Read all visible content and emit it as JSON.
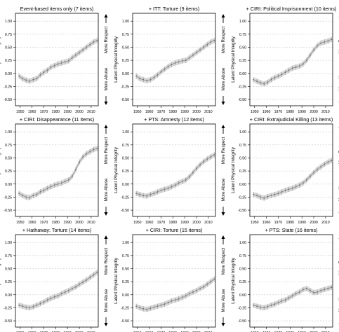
{
  "figure": {
    "ylabel": "Latent Physical Integrity",
    "side_top": "More Respect",
    "side_bottom": "More Abuse",
    "yticks": [
      "-0.50",
      "-0.25",
      "0.00",
      "0.25",
      "0.50",
      "0.75",
      "1.00"
    ],
    "xticks": [
      "1950",
      "1960",
      "1970",
      "1980",
      "1990",
      "2000",
      "2010"
    ]
  },
  "chart_data": [
    {
      "type": "line",
      "title": "Event-based items only (7 items)",
      "ylabel": "Latent Physical Integrity",
      "xlim": [
        1946,
        2016
      ],
      "ylim": [
        -0.62,
        1.15
      ],
      "grid": true,
      "band_halfwidth": 0.05,
      "x": [
        1949,
        1952,
        1955,
        1958,
        1961,
        1964,
        1967,
        1970,
        1973,
        1976,
        1979,
        1982,
        1985,
        1988,
        1991,
        1994,
        1997,
        2000,
        2003,
        2006,
        2009,
        2012,
        2015
      ],
      "y": [
        -0.05,
        -0.1,
        -0.13,
        -0.15,
        -0.12,
        -0.1,
        -0.03,
        0.02,
        0.06,
        0.12,
        0.15,
        0.18,
        0.2,
        0.22,
        0.24,
        0.3,
        0.35,
        0.4,
        0.45,
        0.5,
        0.55,
        0.6,
        0.63
      ]
    },
    {
      "type": "line",
      "title": "+ ITT: Torture (9 items)",
      "ylabel": "Latent Physical Integrity",
      "xlim": [
        1946,
        2016
      ],
      "ylim": [
        -0.62,
        1.15
      ],
      "grid": true,
      "band_halfwidth": 0.05,
      "x": [
        1949,
        1952,
        1955,
        1958,
        1961,
        1964,
        1967,
        1970,
        1973,
        1976,
        1979,
        1982,
        1985,
        1988,
        1991,
        1994,
        1997,
        2000,
        2003,
        2006,
        2009,
        2012,
        2015
      ],
      "y": [
        -0.05,
        -0.1,
        -0.12,
        -0.14,
        -0.12,
        -0.08,
        -0.03,
        0.03,
        0.08,
        0.13,
        0.17,
        0.2,
        0.22,
        0.24,
        0.25,
        0.3,
        0.35,
        0.4,
        0.45,
        0.5,
        0.55,
        0.6,
        0.63
      ]
    },
    {
      "type": "line",
      "title": "+ CIRI: Political Imprisonment (10 items)",
      "ylabel": "Latent Physical Integrity",
      "xlim": [
        1946,
        2016
      ],
      "ylim": [
        -0.62,
        1.15
      ],
      "grid": true,
      "band_halfwidth": 0.05,
      "x": [
        1949,
        1952,
        1955,
        1958,
        1961,
        1964,
        1967,
        1970,
        1973,
        1976,
        1979,
        1982,
        1985,
        1988,
        1991,
        1994,
        1997,
        2000,
        2003,
        2006,
        2009,
        2012,
        2015
      ],
      "y": [
        -0.12,
        -0.15,
        -0.18,
        -0.2,
        -0.17,
        -0.12,
        -0.08,
        -0.05,
        -0.02,
        0.02,
        0.06,
        0.1,
        0.12,
        0.14,
        0.18,
        0.25,
        0.35,
        0.45,
        0.53,
        0.58,
        0.6,
        0.62,
        0.65
      ]
    },
    {
      "type": "line",
      "title": "+ CIRI: Disappearance (11 items)",
      "ylabel": "Latent Physical Integrity",
      "xlim": [
        1946,
        2016
      ],
      "ylim": [
        -0.62,
        1.15
      ],
      "grid": true,
      "band_halfwidth": 0.05,
      "x": [
        1949,
        1952,
        1955,
        1958,
        1961,
        1964,
        1967,
        1970,
        1973,
        1976,
        1979,
        1982,
        1985,
        1988,
        1991,
        1994,
        1997,
        2000,
        2003,
        2006,
        2009,
        2012,
        2015
      ],
      "y": [
        -0.18,
        -0.22,
        -0.25,
        -0.26,
        -0.22,
        -0.2,
        -0.15,
        -0.12,
        -0.08,
        -0.05,
        -0.02,
        0.0,
        0.02,
        0.05,
        0.08,
        0.15,
        0.28,
        0.42,
        0.52,
        0.58,
        0.62,
        0.66,
        0.68
      ]
    },
    {
      "type": "line",
      "title": "+ PTS: Amnesty (12 items)",
      "ylabel": "Latent Physical Integrity",
      "xlim": [
        1946,
        2016
      ],
      "ylim": [
        -0.62,
        1.15
      ],
      "grid": true,
      "band_halfwidth": 0.05,
      "x": [
        1949,
        1952,
        1955,
        1958,
        1961,
        1964,
        1967,
        1970,
        1973,
        1976,
        1979,
        1982,
        1985,
        1988,
        1991,
        1994,
        1997,
        2000,
        2003,
        2006,
        2009,
        2012,
        2015
      ],
      "y": [
        -0.18,
        -0.2,
        -0.22,
        -0.23,
        -0.2,
        -0.18,
        -0.15,
        -0.12,
        -0.1,
        -0.08,
        -0.05,
        -0.02,
        0.02,
        0.05,
        0.08,
        0.14,
        0.22,
        0.3,
        0.37,
        0.43,
        0.48,
        0.52,
        0.56
      ]
    },
    {
      "type": "line",
      "title": "+ CIRI: Extrajudicial Killing (13 items)",
      "ylabel": "Latent Physical Integrity",
      "xlim": [
        1946,
        2016
      ],
      "ylim": [
        -0.62,
        1.15
      ],
      "grid": true,
      "band_halfwidth": 0.05,
      "x": [
        1949,
        1952,
        1955,
        1958,
        1961,
        1964,
        1967,
        1970,
        1973,
        1976,
        1979,
        1982,
        1985,
        1988,
        1991,
        1994,
        1997,
        2000,
        2003,
        2006,
        2009,
        2012,
        2015
      ],
      "y": [
        -0.2,
        -0.22,
        -0.25,
        -0.27,
        -0.24,
        -0.22,
        -0.2,
        -0.18,
        -0.15,
        -0.12,
        -0.1,
        -0.08,
        -0.05,
        -0.02,
        0.02,
        0.08,
        0.15,
        0.22,
        0.28,
        0.33,
        0.38,
        0.42,
        0.45
      ]
    },
    {
      "type": "line",
      "title": "+ Hathaway: Torture (14 items)",
      "ylabel": "Latent Physical Integrity",
      "xlim": [
        1946,
        2016
      ],
      "ylim": [
        -0.62,
        1.15
      ],
      "grid": true,
      "band_halfwidth": 0.05,
      "x": [
        1949,
        1952,
        1955,
        1958,
        1961,
        1964,
        1967,
        1970,
        1973,
        1976,
        1979,
        1982,
        1985,
        1988,
        1991,
        1994,
        1997,
        2000,
        2003,
        2006,
        2009,
        2012,
        2015
      ],
      "y": [
        -0.2,
        -0.22,
        -0.24,
        -0.25,
        -0.23,
        -0.2,
        -0.17,
        -0.14,
        -0.1,
        -0.07,
        -0.04,
        -0.02,
        0.02,
        0.05,
        0.08,
        0.12,
        0.15,
        0.2,
        0.24,
        0.28,
        0.33,
        0.38,
        0.43
      ]
    },
    {
      "type": "line",
      "title": "+ CIRI: Torture (15 items)",
      "ylabel": "Latent Physical Integrity",
      "xlim": [
        1946,
        2016
      ],
      "ylim": [
        -0.62,
        1.15
      ],
      "grid": true,
      "band_halfwidth": 0.05,
      "x": [
        1949,
        1952,
        1955,
        1958,
        1961,
        1964,
        1967,
        1970,
        1973,
        1976,
        1979,
        1982,
        1985,
        1988,
        1991,
        1994,
        1997,
        2000,
        2003,
        2006,
        2009,
        2012,
        2015
      ],
      "y": [
        -0.22,
        -0.25,
        -0.27,
        -0.28,
        -0.26,
        -0.24,
        -0.22,
        -0.2,
        -0.18,
        -0.15,
        -0.12,
        -0.1,
        -0.08,
        -0.05,
        -0.02,
        0.02,
        0.05,
        0.08,
        0.12,
        0.15,
        0.2,
        0.25,
        0.3
      ]
    },
    {
      "type": "line",
      "title": "+ PTS: State (16 items)",
      "ylabel": "Latent Physical Integrity",
      "xlim": [
        1946,
        2016
      ],
      "ylim": [
        -0.62,
        1.15
      ],
      "grid": true,
      "band_halfwidth": 0.05,
      "x": [
        1949,
        1952,
        1955,
        1958,
        1961,
        1964,
        1967,
        1970,
        1973,
        1976,
        1979,
        1982,
        1985,
        1988,
        1991,
        1994,
        1997,
        2000,
        2003,
        2006,
        2009,
        2012,
        2015
      ],
      "y": [
        -0.2,
        -0.22,
        -0.24,
        -0.25,
        -0.23,
        -0.2,
        -0.18,
        -0.15,
        -0.12,
        -0.1,
        -0.06,
        -0.02,
        0.02,
        0.05,
        0.1,
        0.12,
        0.08,
        0.04,
        0.05,
        0.08,
        0.1,
        0.12,
        0.14
      ]
    }
  ]
}
